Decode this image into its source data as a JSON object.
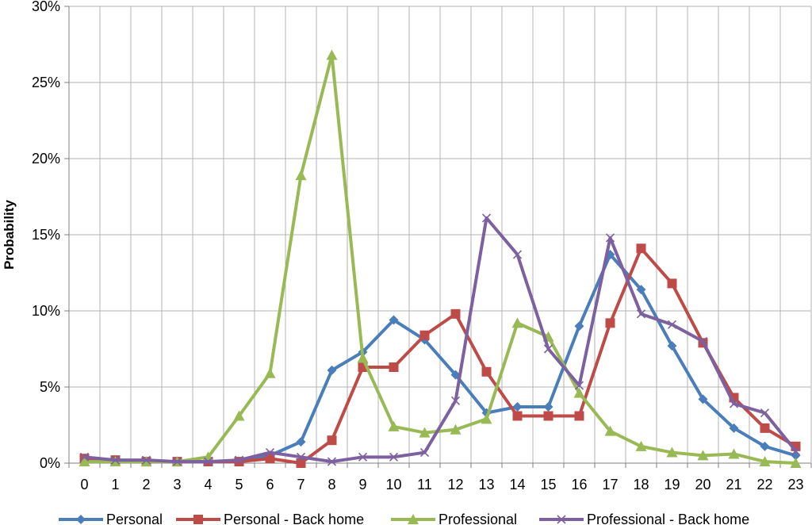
{
  "chart_data": {
    "type": "line",
    "title": "",
    "xlabel": "",
    "ylabel": "Probability",
    "x": [
      "0",
      "1",
      "2",
      "3",
      "4",
      "5",
      "6",
      "7",
      "8",
      "9",
      "10",
      "11",
      "12",
      "13",
      "14",
      "15",
      "16",
      "17",
      "18",
      "19",
      "20",
      "21",
      "22",
      "23"
    ],
    "ylim": [
      0,
      30
    ],
    "yticks": [
      "0%",
      "5%",
      "10%",
      "15%",
      "20%",
      "25%",
      "30%"
    ],
    "grid": true,
    "legend_position": "bottom",
    "series": [
      {
        "name": "Personal",
        "color": "#4a7ebb",
        "marker": "diamond",
        "values": [
          0.3,
          0.2,
          0.1,
          0.1,
          0.1,
          0.1,
          0.5,
          1.4,
          6.1,
          7.3,
          9.4,
          8.1,
          5.8,
          3.3,
          3.7,
          3.7,
          9.0,
          13.7,
          11.4,
          7.7,
          4.2,
          2.3,
          1.1,
          0.5
        ]
      },
      {
        "name": "Personal - Back home",
        "color": "#be4b48",
        "marker": "square",
        "values": [
          0.3,
          0.2,
          0.1,
          0.1,
          0.1,
          0.1,
          0.3,
          0.0,
          1.5,
          6.3,
          6.3,
          8.4,
          9.8,
          6.0,
          3.1,
          3.1,
          3.1,
          9.2,
          14.1,
          11.8,
          7.9,
          4.3,
          2.3,
          1.1
        ]
      },
      {
        "name": "Professional",
        "color": "#98b954",
        "marker": "triangle",
        "values": [
          0.1,
          0.1,
          0.1,
          0.1,
          0.4,
          3.1,
          5.9,
          18.9,
          26.8,
          6.9,
          2.4,
          2.0,
          2.2,
          2.9,
          9.2,
          8.3,
          4.6,
          2.1,
          1.1,
          0.7,
          0.5,
          0.6,
          0.1,
          0.0
        ]
      },
      {
        "name": "Professional - Back home",
        "color": "#7d60a0",
        "marker": "x",
        "values": [
          0.4,
          0.2,
          0.2,
          0.1,
          0.1,
          0.2,
          0.7,
          0.4,
          0.1,
          0.4,
          0.4,
          0.7,
          4.1,
          16.1,
          13.7,
          7.5,
          5.1,
          14.8,
          9.8,
          9.1,
          8.0,
          3.9,
          3.3,
          0.8
        ]
      }
    ]
  }
}
